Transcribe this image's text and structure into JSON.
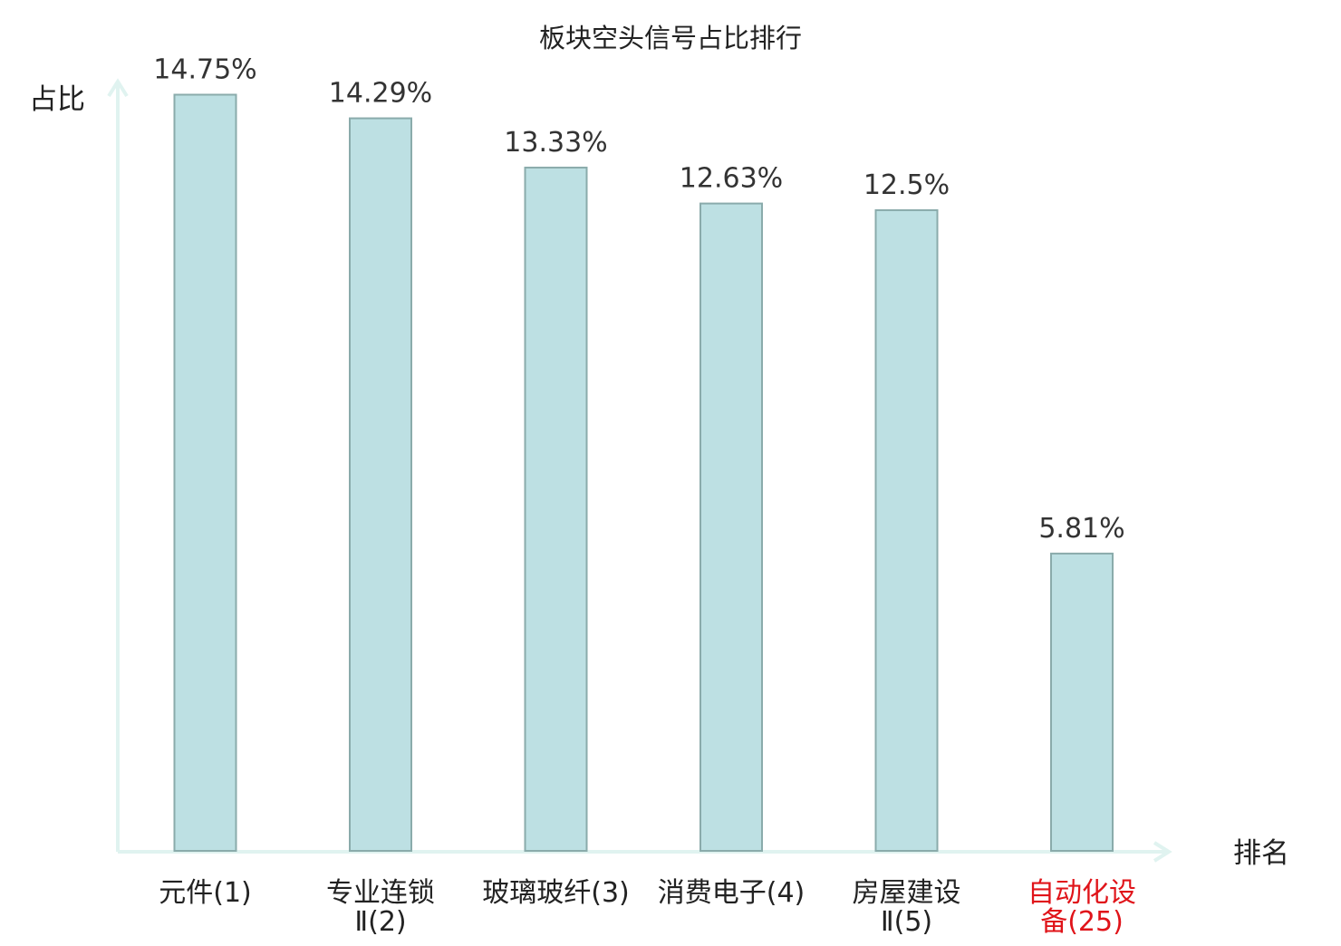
{
  "chart_data": {
    "type": "bar",
    "title": "板块空头信号占比排行",
    "xlabel": "排名",
    "ylabel": "占比",
    "categories": [
      [
        "元件(1)"
      ],
      [
        "专业连锁",
        "Ⅱ(2)"
      ],
      [
        "玻璃玻纤(3)"
      ],
      [
        "消费电子(4)"
      ],
      [
        "房屋建设",
        "Ⅱ(5)"
      ],
      [
        "自动化设",
        "备(25)"
      ]
    ],
    "values": [
      14.75,
      14.29,
      13.33,
      12.63,
      12.5,
      5.81
    ],
    "value_labels": [
      "14.75%",
      "14.29%",
      "13.33%",
      "12.63%",
      "12.5%",
      "5.81%"
    ],
    "highlight_index": 5,
    "ylim": [
      0,
      15.5
    ],
    "grid": false,
    "legend": "none",
    "colors": {
      "bar_fill": "#bde0e3",
      "bar_stroke": "#8aabab",
      "axis": "#e0f3f0",
      "text": "#333333",
      "highlight_text": "#e0141a"
    }
  }
}
